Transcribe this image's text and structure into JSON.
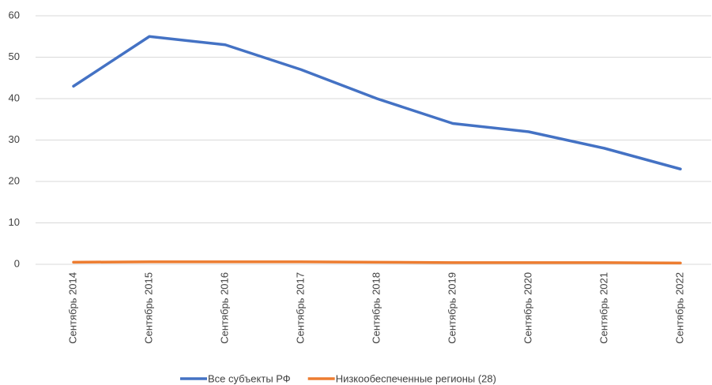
{
  "chart_data": {
    "type": "line",
    "categories": [
      "Сентябрь 2014",
      "Сентябрь 2015",
      "Сентябрь 2016",
      "Сентябрь 2017",
      "Сентябрь 2018",
      "Сентябрь 2019",
      "Сентябрь 2020",
      "Сентябрь 2021",
      "Сентябрь 2022"
    ],
    "series": [
      {
        "name": "Все субъекты РФ",
        "color": "#4472c4",
        "values": [
          43,
          55,
          53,
          47,
          40,
          34,
          32,
          28,
          23
        ]
      },
      {
        "name": "Низкообеспеченные регионы (28)",
        "color": "#ed7d31",
        "values": [
          0.5,
          0.6,
          0.6,
          0.6,
          0.5,
          0.4,
          0.4,
          0.4,
          0.3
        ]
      }
    ],
    "ylim": [
      0,
      60
    ],
    "yticks": [
      0,
      10,
      20,
      30,
      40,
      50,
      60
    ],
    "grid": true,
    "legend": "bottom"
  }
}
